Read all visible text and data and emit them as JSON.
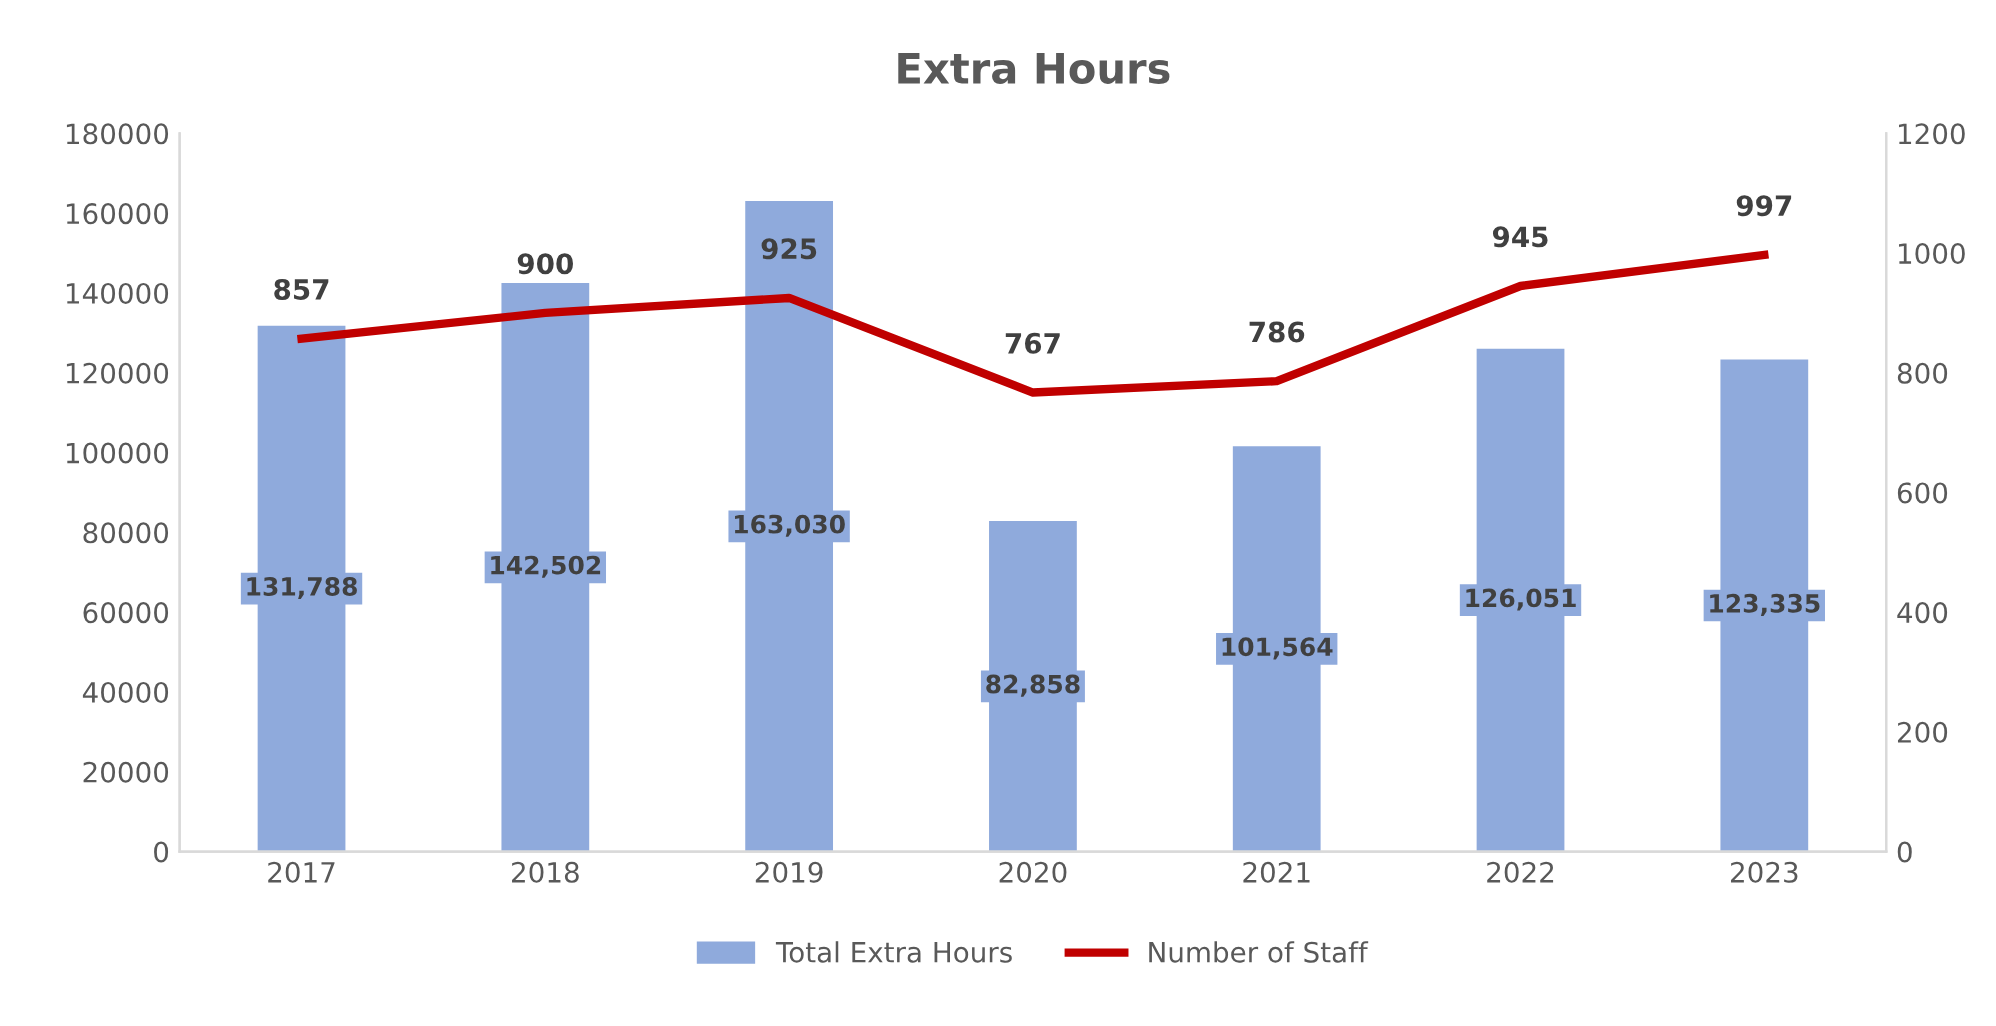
{
  "chart_data": {
    "type": "bar",
    "title": "Extra Hours",
    "categories": [
      "2017",
      "2018",
      "2019",
      "2020",
      "2021",
      "2022",
      "2023"
    ],
    "series": [
      {
        "name": "Total Extra Hours",
        "color": "#8faadc",
        "values": [
          131788,
          142502,
          163030,
          82858,
          101564,
          126051,
          123335
        ],
        "value_labels": [
          "131,788",
          "142,502",
          "163,030",
          "82,858",
          "101,564",
          "126,051",
          "123,335"
        ]
      },
      {
        "name": "Number of Staff",
        "type": "line",
        "axis": "y2",
        "color": "#c00000",
        "values": [
          857,
          900,
          925,
          767,
          786,
          945,
          997
        ],
        "value_labels": [
          "857",
          "900",
          "925",
          "767",
          "786",
          "945",
          "997"
        ]
      }
    ],
    "ylim": [
      0,
      180000
    ],
    "yticks": [
      0,
      20000,
      40000,
      60000,
      80000,
      100000,
      120000,
      140000,
      160000,
      180000
    ],
    "y2lim": [
      0,
      1200
    ],
    "y2ticks": [
      0,
      200,
      400,
      600,
      800,
      1000,
      1200
    ],
    "legend": "bottom",
    "marker": "none",
    "line_style": "solid"
  }
}
